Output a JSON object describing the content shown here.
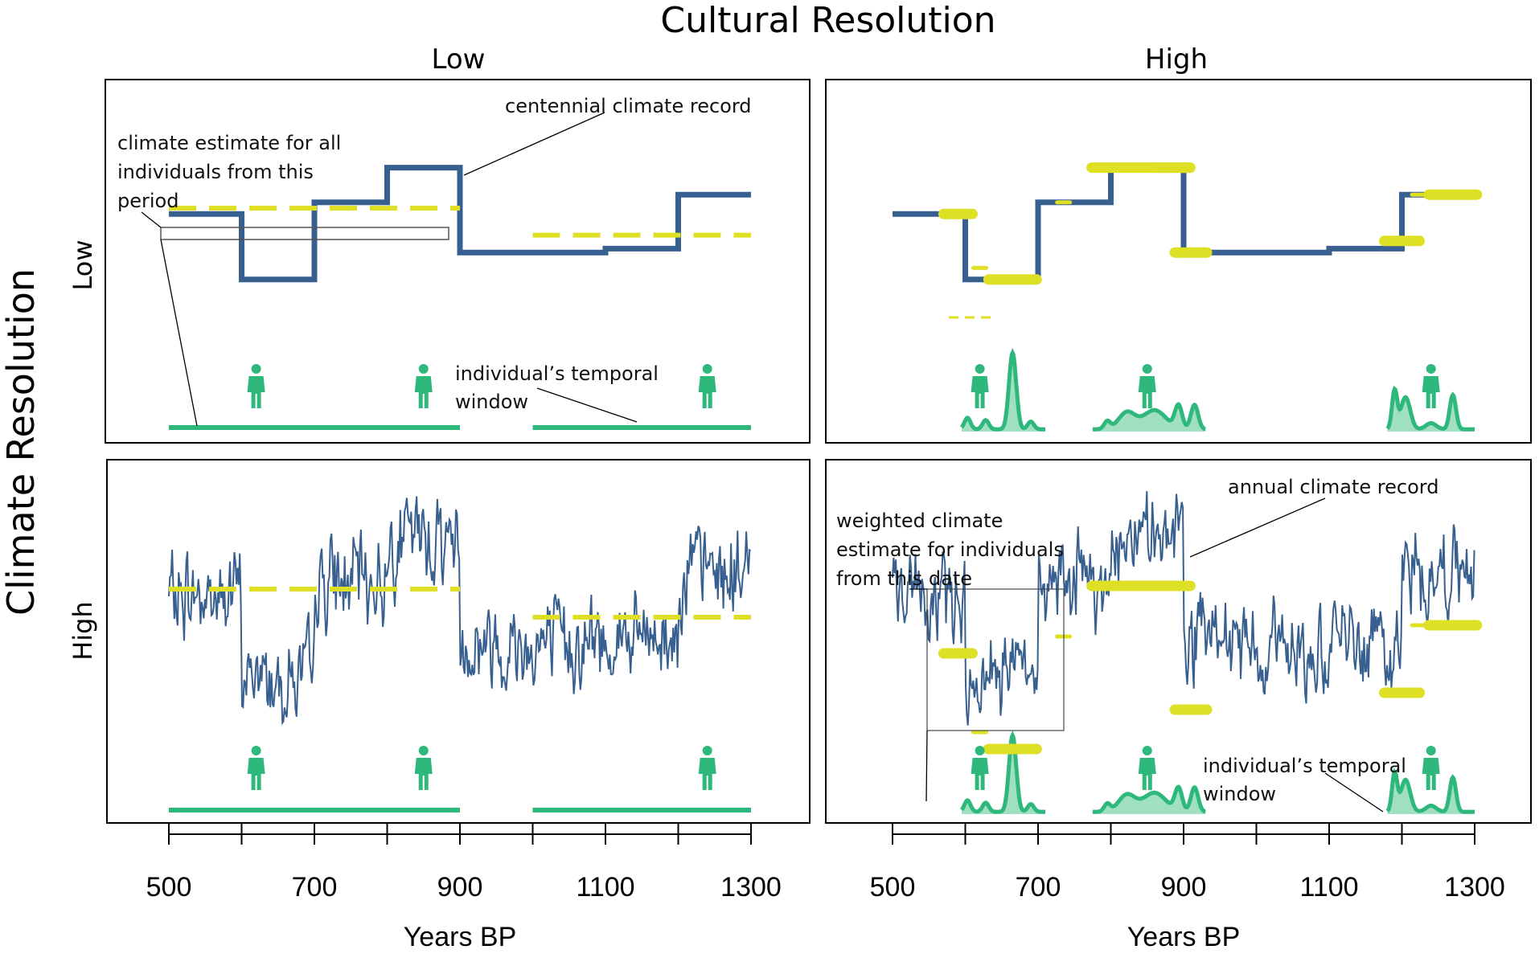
{
  "title": "Cultural Resolution",
  "col_labels": [
    "Low",
    "High"
  ],
  "row_title": "Climate Resolution",
  "row_labels": [
    "Low",
    "High"
  ],
  "annotations": {
    "tl_estimate": [
      "climate estimate for all",
      "individuals from this",
      "period"
    ],
    "tl_record": "centennial climate record",
    "tl_window": [
      "individual’s temporal",
      "window"
    ],
    "br_record": "annual climate record",
    "br_estimate": [
      "weighted climate",
      "estimate for individuals",
      "from this date"
    ],
    "br_window": [
      "individual’s temporal",
      "window"
    ]
  },
  "colors": {
    "climate": "#375f8f",
    "estimate": "#dde025",
    "individual": "#2eb87b",
    "frame": "#000000"
  },
  "chart_data": [
    {
      "type": "line",
      "panel": "Low cultural / Low climate resolution",
      "xlabel": "Years BP",
      "xticks": [
        500,
        600,
        700,
        800,
        900,
        1000,
        1100,
        1200,
        1300
      ],
      "xticklabels": [
        "500",
        "700",
        "900",
        "1100",
        "1300"
      ],
      "xlim": [
        500,
        1300
      ],
      "series": [
        {
          "name": "centennial climate record",
          "step_x": [
            500,
            600,
            600,
            700,
            700,
            800,
            800,
            900,
            900,
            1100,
            1100,
            1200,
            1200,
            1300
          ],
          "step_y": [
            0.62,
            0.62,
            0.28,
            0.28,
            0.68,
            0.68,
            0.86,
            0.86,
            0.42,
            0.42,
            0.44,
            0.44,
            0.72,
            0.72
          ]
        }
      ],
      "period_estimates": [
        {
          "x": [
            500,
            900
          ],
          "y": 0.65
        },
        {
          "x": [
            1000,
            1300
          ],
          "y": 0.51
        }
      ],
      "individual_windows": [
        {
          "x": [
            500,
            900
          ]
        },
        {
          "x": [
            1000,
            1300
          ]
        }
      ],
      "individual_markers_x": [
        620,
        850,
        1240
      ]
    },
    {
      "type": "line",
      "panel": "High cultural / Low climate resolution",
      "xlabel": "Years BP",
      "xticks": [
        500,
        600,
        700,
        800,
        900,
        1000,
        1100,
        1200,
        1300
      ],
      "xticklabels": [
        "500",
        "700",
        "900",
        "1100",
        "1300"
      ],
      "xlim": [
        500,
        1300
      ],
      "series": [
        {
          "name": "centennial climate record",
          "step_x": [
            500,
            600,
            600,
            700,
            700,
            800,
            800,
            900,
            900,
            1100,
            1100,
            1200,
            1200,
            1300
          ],
          "step_y": [
            0.62,
            0.62,
            0.28,
            0.28,
            0.68,
            0.68,
            0.86,
            0.86,
            0.42,
            0.42,
            0.44,
            0.44,
            0.72,
            0.72
          ]
        }
      ],
      "individual_density_markers_x": [
        620,
        850,
        1240
      ]
    },
    {
      "type": "line",
      "panel": "Low cultural / High climate resolution",
      "xlabel": "Years BP",
      "xticks": [
        500,
        600,
        700,
        800,
        900,
        1000,
        1100,
        1200,
        1300
      ],
      "xticklabels": [
        "500",
        "700",
        "900",
        "1100",
        "1300"
      ],
      "xlim": [
        500,
        1300
      ],
      "period_estimates": [
        {
          "x": [
            500,
            900
          ],
          "y": 0.62
        },
        {
          "x": [
            1000,
            1300
          ],
          "y": 0.52
        }
      ],
      "individual_windows": [
        {
          "x": [
            500,
            900
          ]
        },
        {
          "x": [
            1000,
            1300
          ]
        }
      ],
      "individual_markers_x": [
        620,
        850,
        1240
      ]
    },
    {
      "type": "line",
      "panel": "High cultural / High climate resolution",
      "xlabel": "Years BP",
      "xticks": [
        500,
        600,
        700,
        800,
        900,
        1000,
        1100,
        1200,
        1300
      ],
      "xticklabels": [
        "500",
        "700",
        "900",
        "1100",
        "1300"
      ],
      "xlim": [
        500,
        1300
      ],
      "individual_density_markers_x": [
        620,
        850,
        1240
      ]
    }
  ]
}
